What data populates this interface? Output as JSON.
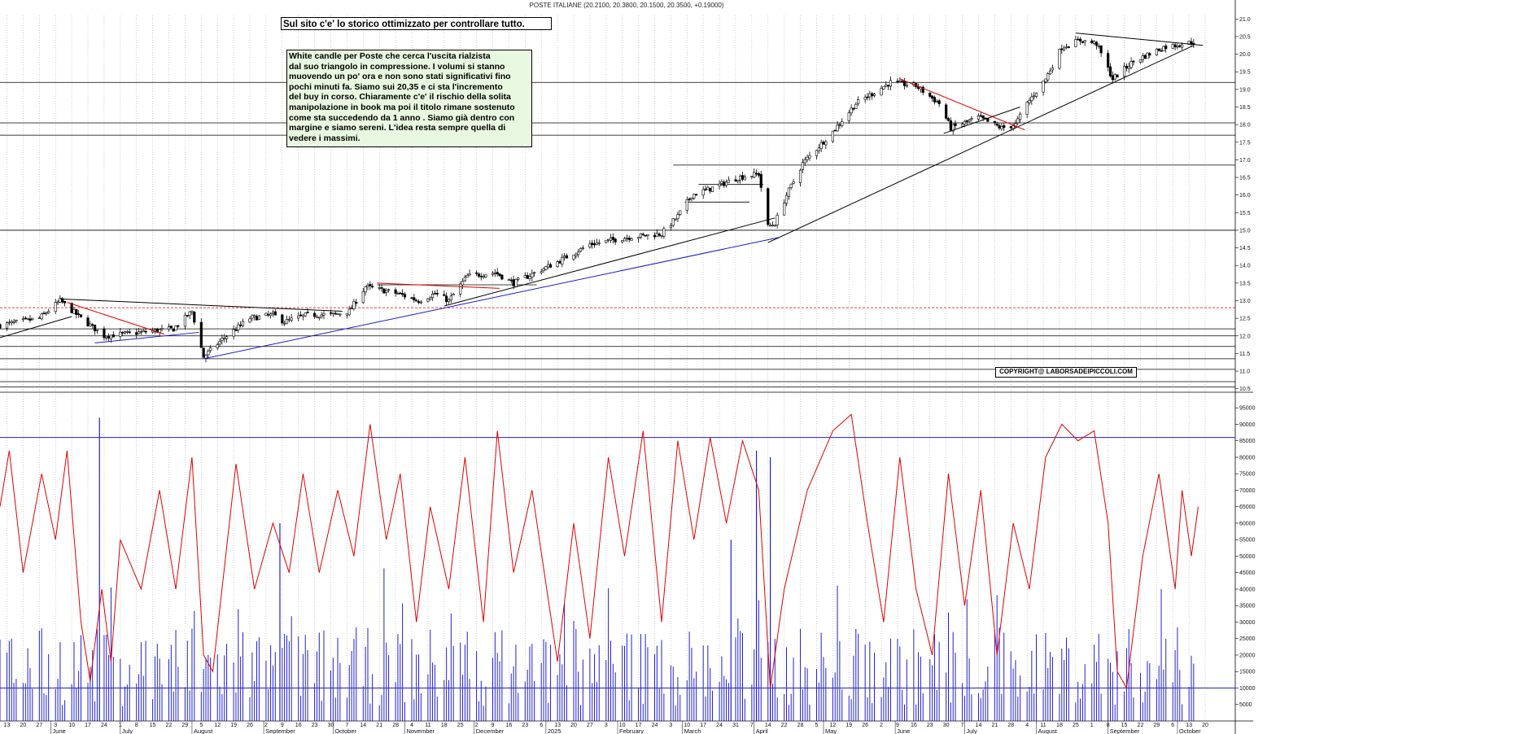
{
  "header": {
    "title": "POSTE ITALIANE (20.2100, 20.3800, 20.1500, 20.3500, +0.19000)"
  },
  "promo": {
    "text": "Sul sito c'e' lo storico ottimizzato per controllare tutto."
  },
  "note": {
    "lines": [
      "White candle per Poste che cerca l'uscita rialzista",
      "dal suo triangolo in compressione. I volumi si stanno",
      "muovendo un po' ora e non sono stati significativi fino",
      "pochi minuti fa. Siamo sui 20,35 e ci sta l'incremento",
      "del buy in corso. Chiaramente c'e' il rischio della solita",
      "manipolazione in book ma poi il titolo rimane sostenuto",
      "come sta succedendo da 1 anno . Siamo già dentro con",
      "margine e siamo sereni. L'idea resta sempre quella di",
      "vedere i massimi."
    ]
  },
  "copyright": {
    "text": "COPYRIGHT@ LABORSADEIPICCOLI.COM"
  },
  "colors": {
    "candle": "#000000",
    "trend_black": "#000000",
    "trend_red": "#e00000",
    "trend_blue": "#1a1ad0",
    "dashed_red": "#e00000",
    "volume": "#2020d0",
    "oscillator": "#e00000",
    "grid": "#b0b0b0"
  },
  "chart_data": [
    {
      "type": "candlestick",
      "title": "POSTE ITALIANE (20.2100, 20.3800, 20.1500, 20.3500, +0.19000)",
      "last": {
        "open": 20.21,
        "high": 20.38,
        "low": 20.15,
        "close": 20.35,
        "change": 0.19
      },
      "ylim": [
        10.4,
        21.1
      ],
      "y_ticks": [
        "10.5",
        "11.0",
        "11.5",
        "12.0",
        "12.5",
        "13.0",
        "13.5",
        "14.0",
        "14.5",
        "15.0",
        "15.5",
        "16.0",
        "16.5",
        "17.0",
        "17.5",
        "18.0",
        "18.5",
        "19.0",
        "19.5",
        "20.0",
        "20.5",
        "21.0"
      ],
      "x_range": [
        "2024-05-10",
        "2025-10-26"
      ],
      "day_ticks": [
        "13",
        "20",
        "27",
        "3",
        "10",
        "17",
        "24",
        "1",
        "8",
        "15",
        "22",
        "29",
        "5",
        "12",
        "19",
        "26",
        "2",
        "9",
        "16",
        "23",
        "30",
        "7",
        "14",
        "21",
        "28",
        "4",
        "11",
        "18",
        "25",
        "2",
        "9",
        "16",
        "23",
        "6",
        "13",
        "20",
        "27",
        "3",
        "10",
        "17",
        "24",
        "3",
        "10",
        "17",
        "24",
        "31",
        "7",
        "14",
        "22",
        "28",
        "5",
        "12",
        "19",
        "26",
        "2",
        "9",
        "16",
        "23",
        "30",
        "7",
        "14",
        "21",
        "28",
        "4",
        "11",
        "18",
        "25",
        "1",
        "8",
        "15",
        "22",
        "29",
        "6",
        "13",
        "20"
      ],
      "month_labels": [
        {
          "date": "2024-06-01",
          "text": "June"
        },
        {
          "date": "2024-07-01",
          "text": "July"
        },
        {
          "date": "2024-08-01",
          "text": "August"
        },
        {
          "date": "2024-09-01",
          "text": "September"
        },
        {
          "date": "2024-10-01",
          "text": "October"
        },
        {
          "date": "2024-11-01",
          "text": "November"
        },
        {
          "date": "2024-12-01",
          "text": "December"
        },
        {
          "date": "2025-01-01",
          "text": "2025"
        },
        {
          "date": "2025-02-01",
          "text": "February"
        },
        {
          "date": "2025-03-01",
          "text": "March"
        },
        {
          "date": "2025-04-01",
          "text": "April"
        },
        {
          "date": "2025-05-01",
          "text": "May"
        },
        {
          "date": "2025-06-01",
          "text": "June"
        },
        {
          "date": "2025-07-01",
          "text": "July"
        },
        {
          "date": "2025-08-01",
          "text": "August"
        },
        {
          "date": "2025-09-01",
          "text": "September"
        },
        {
          "date": "2025-10-01",
          "text": "October"
        }
      ],
      "price_path": [
        [
          "2024-05-10",
          12.3
        ],
        [
          "2024-05-27",
          12.5
        ],
        [
          "2024-06-05",
          13.0
        ],
        [
          "2024-06-14",
          12.5
        ],
        [
          "2024-06-24",
          12.0
        ],
        [
          "2024-07-10",
          12.1
        ],
        [
          "2024-07-24",
          12.2
        ],
        [
          "2024-08-01",
          12.7
        ],
        [
          "2024-08-06",
          11.4
        ],
        [
          "2024-08-14",
          11.9
        ],
        [
          "2024-08-26",
          12.5
        ],
        [
          "2024-09-05",
          12.6
        ],
        [
          "2024-09-10",
          12.4
        ],
        [
          "2024-09-20",
          12.6
        ],
        [
          "2024-10-01",
          12.6
        ],
        [
          "2024-10-08",
          12.7
        ],
        [
          "2024-10-15",
          13.4
        ],
        [
          "2024-10-29",
          13.2
        ],
        [
          "2024-11-07",
          13.0
        ],
        [
          "2024-11-14",
          13.2
        ],
        [
          "2024-11-20",
          13.0
        ],
        [
          "2024-11-28",
          13.7
        ],
        [
          "2024-12-10",
          13.8
        ],
        [
          "2024-12-18",
          13.5
        ],
        [
          "2025-01-06",
          14.1
        ],
        [
          "2025-01-20",
          14.6
        ],
        [
          "2025-02-05",
          14.8
        ],
        [
          "2025-02-20",
          14.9
        ],
        [
          "2025-02-27",
          15.4
        ],
        [
          "2025-03-05",
          16.0
        ],
        [
          "2025-03-14",
          16.2
        ],
        [
          "2025-03-25",
          16.5
        ],
        [
          "2025-04-03",
          16.6
        ],
        [
          "2025-04-07",
          15.1
        ],
        [
          "2025-04-10",
          15.2
        ],
        [
          "2025-04-15",
          16.0
        ],
        [
          "2025-04-22",
          16.9
        ],
        [
          "2025-05-05",
          17.8
        ],
        [
          "2025-05-15",
          18.6
        ],
        [
          "2025-05-30",
          19.2
        ],
        [
          "2025-06-10",
          19.1
        ],
        [
          "2025-06-20",
          18.6
        ],
        [
          "2025-06-25",
          17.9
        ],
        [
          "2025-07-07",
          18.2
        ],
        [
          "2025-07-17",
          17.9
        ],
        [
          "2025-07-23",
          18.0
        ],
        [
          "2025-07-28",
          18.6
        ],
        [
          "2025-08-05",
          19.3
        ],
        [
          "2025-08-12",
          20.2
        ],
        [
          "2025-08-20",
          20.4
        ],
        [
          "2025-08-27",
          20.3
        ],
        [
          "2025-09-03",
          19.3
        ],
        [
          "2025-09-12",
          19.8
        ],
        [
          "2025-09-25",
          20.2
        ],
        [
          "2025-10-08",
          20.35
        ]
      ],
      "horizontal_levels": [
        10.55,
        10.7,
        11.05,
        11.35,
        11.7,
        12.0,
        12.2,
        15.0,
        17.7,
        18.05,
        19.2
      ],
      "dashed_level": 12.8,
      "level_segments": [
        {
          "from": "2024-10-20",
          "to": "2024-12-28",
          "y": 13.45
        },
        {
          "from": "2025-03-02",
          "to": "2025-03-30",
          "y": 15.8
        },
        {
          "from": "2025-03-08",
          "to": "2025-04-05",
          "y": 16.3
        },
        {
          "from": "2025-02-25",
          "to": "2025-10-26",
          "y": 16.85
        }
      ],
      "trendlines": [
        {
          "color": "black",
          "from": [
            "2024-05-10",
            11.95
          ],
          "to": [
            "2024-06-10",
            12.55
          ]
        },
        {
          "color": "black",
          "from": [
            "2024-06-05",
            13.05
          ],
          "to": [
            "2024-10-05",
            12.7
          ]
        },
        {
          "color": "red",
          "from": [
            "2024-06-08",
            12.95
          ],
          "to": [
            "2024-07-20",
            12.05
          ]
        },
        {
          "color": "blue",
          "from": [
            "2024-06-20",
            11.8
          ],
          "to": [
            "2024-08-04",
            12.1
          ]
        },
        {
          "color": "blue",
          "from": [
            "2024-08-06",
            11.35
          ],
          "to": [
            "2025-04-12",
            14.8
          ]
        },
        {
          "color": "black",
          "from": [
            "2024-11-18",
            12.85
          ],
          "to": [
            "2025-04-10",
            15.35
          ]
        },
        {
          "color": "red",
          "from": [
            "2024-10-20",
            13.5
          ],
          "to": [
            "2024-12-12",
            13.35
          ]
        },
        {
          "color": "black",
          "from": [
            "2025-04-07",
            14.65
          ],
          "to": [
            "2025-10-08",
            20.25
          ]
        },
        {
          "color": "red",
          "from": [
            "2025-06-03",
            19.3
          ],
          "to": [
            "2025-07-27",
            17.85
          ]
        },
        {
          "color": "black",
          "from": [
            "2025-06-22",
            17.75
          ],
          "to": [
            "2025-07-25",
            18.5
          ]
        },
        {
          "color": "black",
          "from": [
            "2025-08-18",
            20.6
          ],
          "to": [
            "2025-10-12",
            20.25
          ]
        }
      ]
    },
    {
      "type": "bar+line",
      "name": "volume-oscillator",
      "ylim": [
        0,
        98000
      ],
      "y_ticks": [
        "5000",
        "10000",
        "15000",
        "20000",
        "25000",
        "30000",
        "35000",
        "40000",
        "45000",
        "50000",
        "55000",
        "60000",
        "65000",
        "70000",
        "75000",
        "80000",
        "85000",
        "90000",
        "95000"
      ],
      "levels": [
        10000,
        86000
      ],
      "oscillator_path": [
        [
          "2024-05-10",
          65000
        ],
        [
          "2024-05-14",
          82000
        ],
        [
          "2024-05-20",
          45000
        ],
        [
          "2024-05-28",
          75000
        ],
        [
          "2024-06-03",
          55000
        ],
        [
          "2024-06-08",
          82000
        ],
        [
          "2024-06-14",
          30000
        ],
        [
          "2024-06-18",
          12000
        ],
        [
          "2024-06-23",
          40000
        ],
        [
          "2024-06-27",
          18000
        ],
        [
          "2024-07-01",
          55000
        ],
        [
          "2024-07-10",
          40000
        ],
        [
          "2024-07-18",
          70000
        ],
        [
          "2024-07-25",
          40000
        ],
        [
          "2024-08-01",
          80000
        ],
        [
          "2024-08-06",
          20000
        ],
        [
          "2024-08-10",
          15000
        ],
        [
          "2024-08-20",
          78000
        ],
        [
          "2024-08-28",
          40000
        ],
        [
          "2024-09-05",
          60000
        ],
        [
          "2024-09-12",
          45000
        ],
        [
          "2024-09-18",
          75000
        ],
        [
          "2024-09-25",
          45000
        ],
        [
          "2024-10-03",
          70000
        ],
        [
          "2024-10-10",
          50000
        ],
        [
          "2024-10-17",
          90000
        ],
        [
          "2024-10-24",
          55000
        ],
        [
          "2024-10-30",
          75000
        ],
        [
          "2024-11-06",
          30000
        ],
        [
          "2024-11-12",
          65000
        ],
        [
          "2024-11-20",
          40000
        ],
        [
          "2024-11-27",
          80000
        ],
        [
          "2024-12-05",
          30000
        ],
        [
          "2024-12-11",
          88000
        ],
        [
          "2024-12-18",
          45000
        ],
        [
          "2024-12-26",
          70000
        ],
        [
          "2025-01-06",
          18000
        ],
        [
          "2025-01-13",
          60000
        ],
        [
          "2025-01-20",
          25000
        ],
        [
          "2025-01-28",
          80000
        ],
        [
          "2025-02-04",
          50000
        ],
        [
          "2025-02-12",
          88000
        ],
        [
          "2025-02-20",
          30000
        ],
        [
          "2025-02-27",
          85000
        ],
        [
          "2025-03-06",
          55000
        ],
        [
          "2025-03-13",
          86000
        ],
        [
          "2025-03-20",
          60000
        ],
        [
          "2025-03-27",
          85000
        ],
        [
          "2025-04-03",
          70000
        ],
        [
          "2025-04-08",
          10000
        ],
        [
          "2025-04-14",
          40000
        ],
        [
          "2025-04-24",
          70000
        ],
        [
          "2025-05-05",
          88000
        ],
        [
          "2025-05-13",
          93000
        ],
        [
          "2025-05-20",
          60000
        ],
        [
          "2025-05-27",
          30000
        ],
        [
          "2025-06-03",
          80000
        ],
        [
          "2025-06-10",
          40000
        ],
        [
          "2025-06-17",
          20000
        ],
        [
          "2025-06-24",
          75000
        ],
        [
          "2025-07-01",
          35000
        ],
        [
          "2025-07-08",
          70000
        ],
        [
          "2025-07-15",
          20000
        ],
        [
          "2025-07-22",
          60000
        ],
        [
          "2025-07-29",
          40000
        ],
        [
          "2025-08-05",
          80000
        ],
        [
          "2025-08-12",
          90000
        ],
        [
          "2025-08-19",
          85000
        ],
        [
          "2025-08-26",
          88000
        ],
        [
          "2025-09-01",
          60000
        ],
        [
          "2025-09-05",
          15000
        ],
        [
          "2025-09-09",
          10000
        ],
        [
          "2025-09-16",
          50000
        ],
        [
          "2025-09-23",
          75000
        ],
        [
          "2025-09-30",
          40000
        ],
        [
          "2025-10-03",
          70000
        ],
        [
          "2025-10-07",
          50000
        ],
        [
          "2025-10-10",
          65000
        ]
      ],
      "volume_spikes": [
        [
          "2024-06-22",
          92000
        ],
        [
          "2024-09-08",
          60000
        ],
        [
          "2025-04-02",
          82000
        ],
        [
          "2025-04-08",
          80000
        ],
        [
          "2025-03-22",
          55000
        ]
      ],
      "volume_baseline": 15000
    }
  ]
}
